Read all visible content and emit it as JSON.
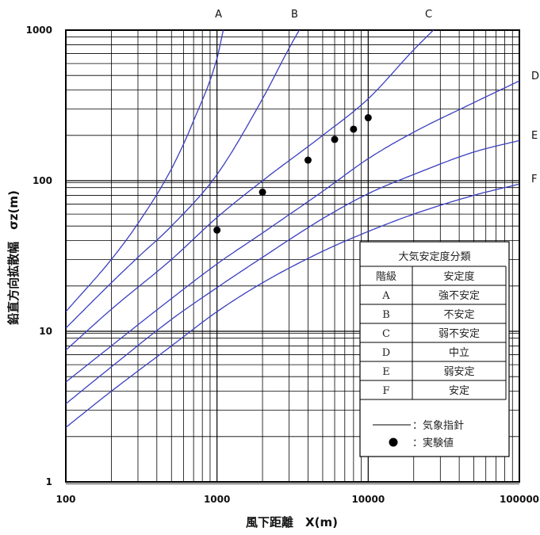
{
  "colors": {
    "curve": "#3a3fc0",
    "grid": "#000000",
    "point": "#000000"
  },
  "chart_data": {
    "type": "line",
    "xscale": "log",
    "yscale": "log",
    "xlim": [
      100,
      100000
    ],
    "ylim": [
      1,
      1000
    ],
    "xlabel": "風下距離　X(m)",
    "ylabel": "鉛直方向拡散幅　σz(m)",
    "x_ticks": [
      "100",
      "1000",
      "10000",
      "100000"
    ],
    "y_ticks": [
      "1",
      "10",
      "100",
      "1000"
    ],
    "grid": true,
    "series": [
      {
        "name": "A",
        "x": [
          100,
          200,
          300,
          500,
          700,
          1000,
          1100
        ],
        "y": [
          13.5,
          30,
          52,
          120,
          250,
          650,
          1000
        ]
      },
      {
        "name": "B",
        "x": [
          100,
          200,
          300,
          500,
          1000,
          2000,
          3000,
          3500
        ],
        "y": [
          10.5,
          21,
          31,
          50,
          110,
          350,
          760,
          1000
        ]
      },
      {
        "name": "C",
        "x": [
          100,
          200,
          500,
          1000,
          2000,
          5000,
          10000,
          20000,
          27000
        ],
        "y": [
          7.5,
          14,
          30,
          57,
          100,
          200,
          350,
          740,
          1000
        ]
      },
      {
        "name": "D",
        "x": [
          100,
          200,
          500,
          1000,
          2000,
          5000,
          10000,
          20000,
          50000,
          100000
        ],
        "y": [
          4.6,
          8,
          16.5,
          28,
          45,
          85,
          140,
          210,
          330,
          460
        ]
      },
      {
        "name": "E",
        "x": [
          100,
          200,
          500,
          1000,
          2000,
          5000,
          10000,
          20000,
          50000,
          100000
        ],
        "y": [
          3.3,
          5.8,
          12,
          19.5,
          31,
          56,
          82,
          110,
          155,
          185
        ]
      },
      {
        "name": "F",
        "x": [
          100,
          200,
          500,
          1000,
          2000,
          5000,
          10000,
          20000,
          50000,
          100000
        ],
        "y": [
          2.3,
          4,
          8,
          13.5,
          21,
          34,
          46,
          60,
          80,
          95
        ]
      }
    ],
    "points": [
      {
        "x": 1000,
        "y": 47
      },
      {
        "x": 2000,
        "y": 84
      },
      {
        "x": 4000,
        "y": 137
      },
      {
        "x": 6000,
        "y": 188
      },
      {
        "x": 8000,
        "y": 220
      },
      {
        "x": 10000,
        "y": 262
      }
    ],
    "legend": {
      "placement": "bottom-right",
      "title": "大気安定度分類",
      "header": [
        "階級",
        "安定度"
      ],
      "rows": [
        [
          "A",
          "強不安定"
        ],
        [
          "B",
          "不安定"
        ],
        [
          "C",
          "弱不安定"
        ],
        [
          "D",
          "中立"
        ],
        [
          "E",
          "弱安定"
        ],
        [
          "F",
          "安定"
        ]
      ],
      "line_label": "：気象指針",
      "point_label": "：実験値"
    }
  }
}
